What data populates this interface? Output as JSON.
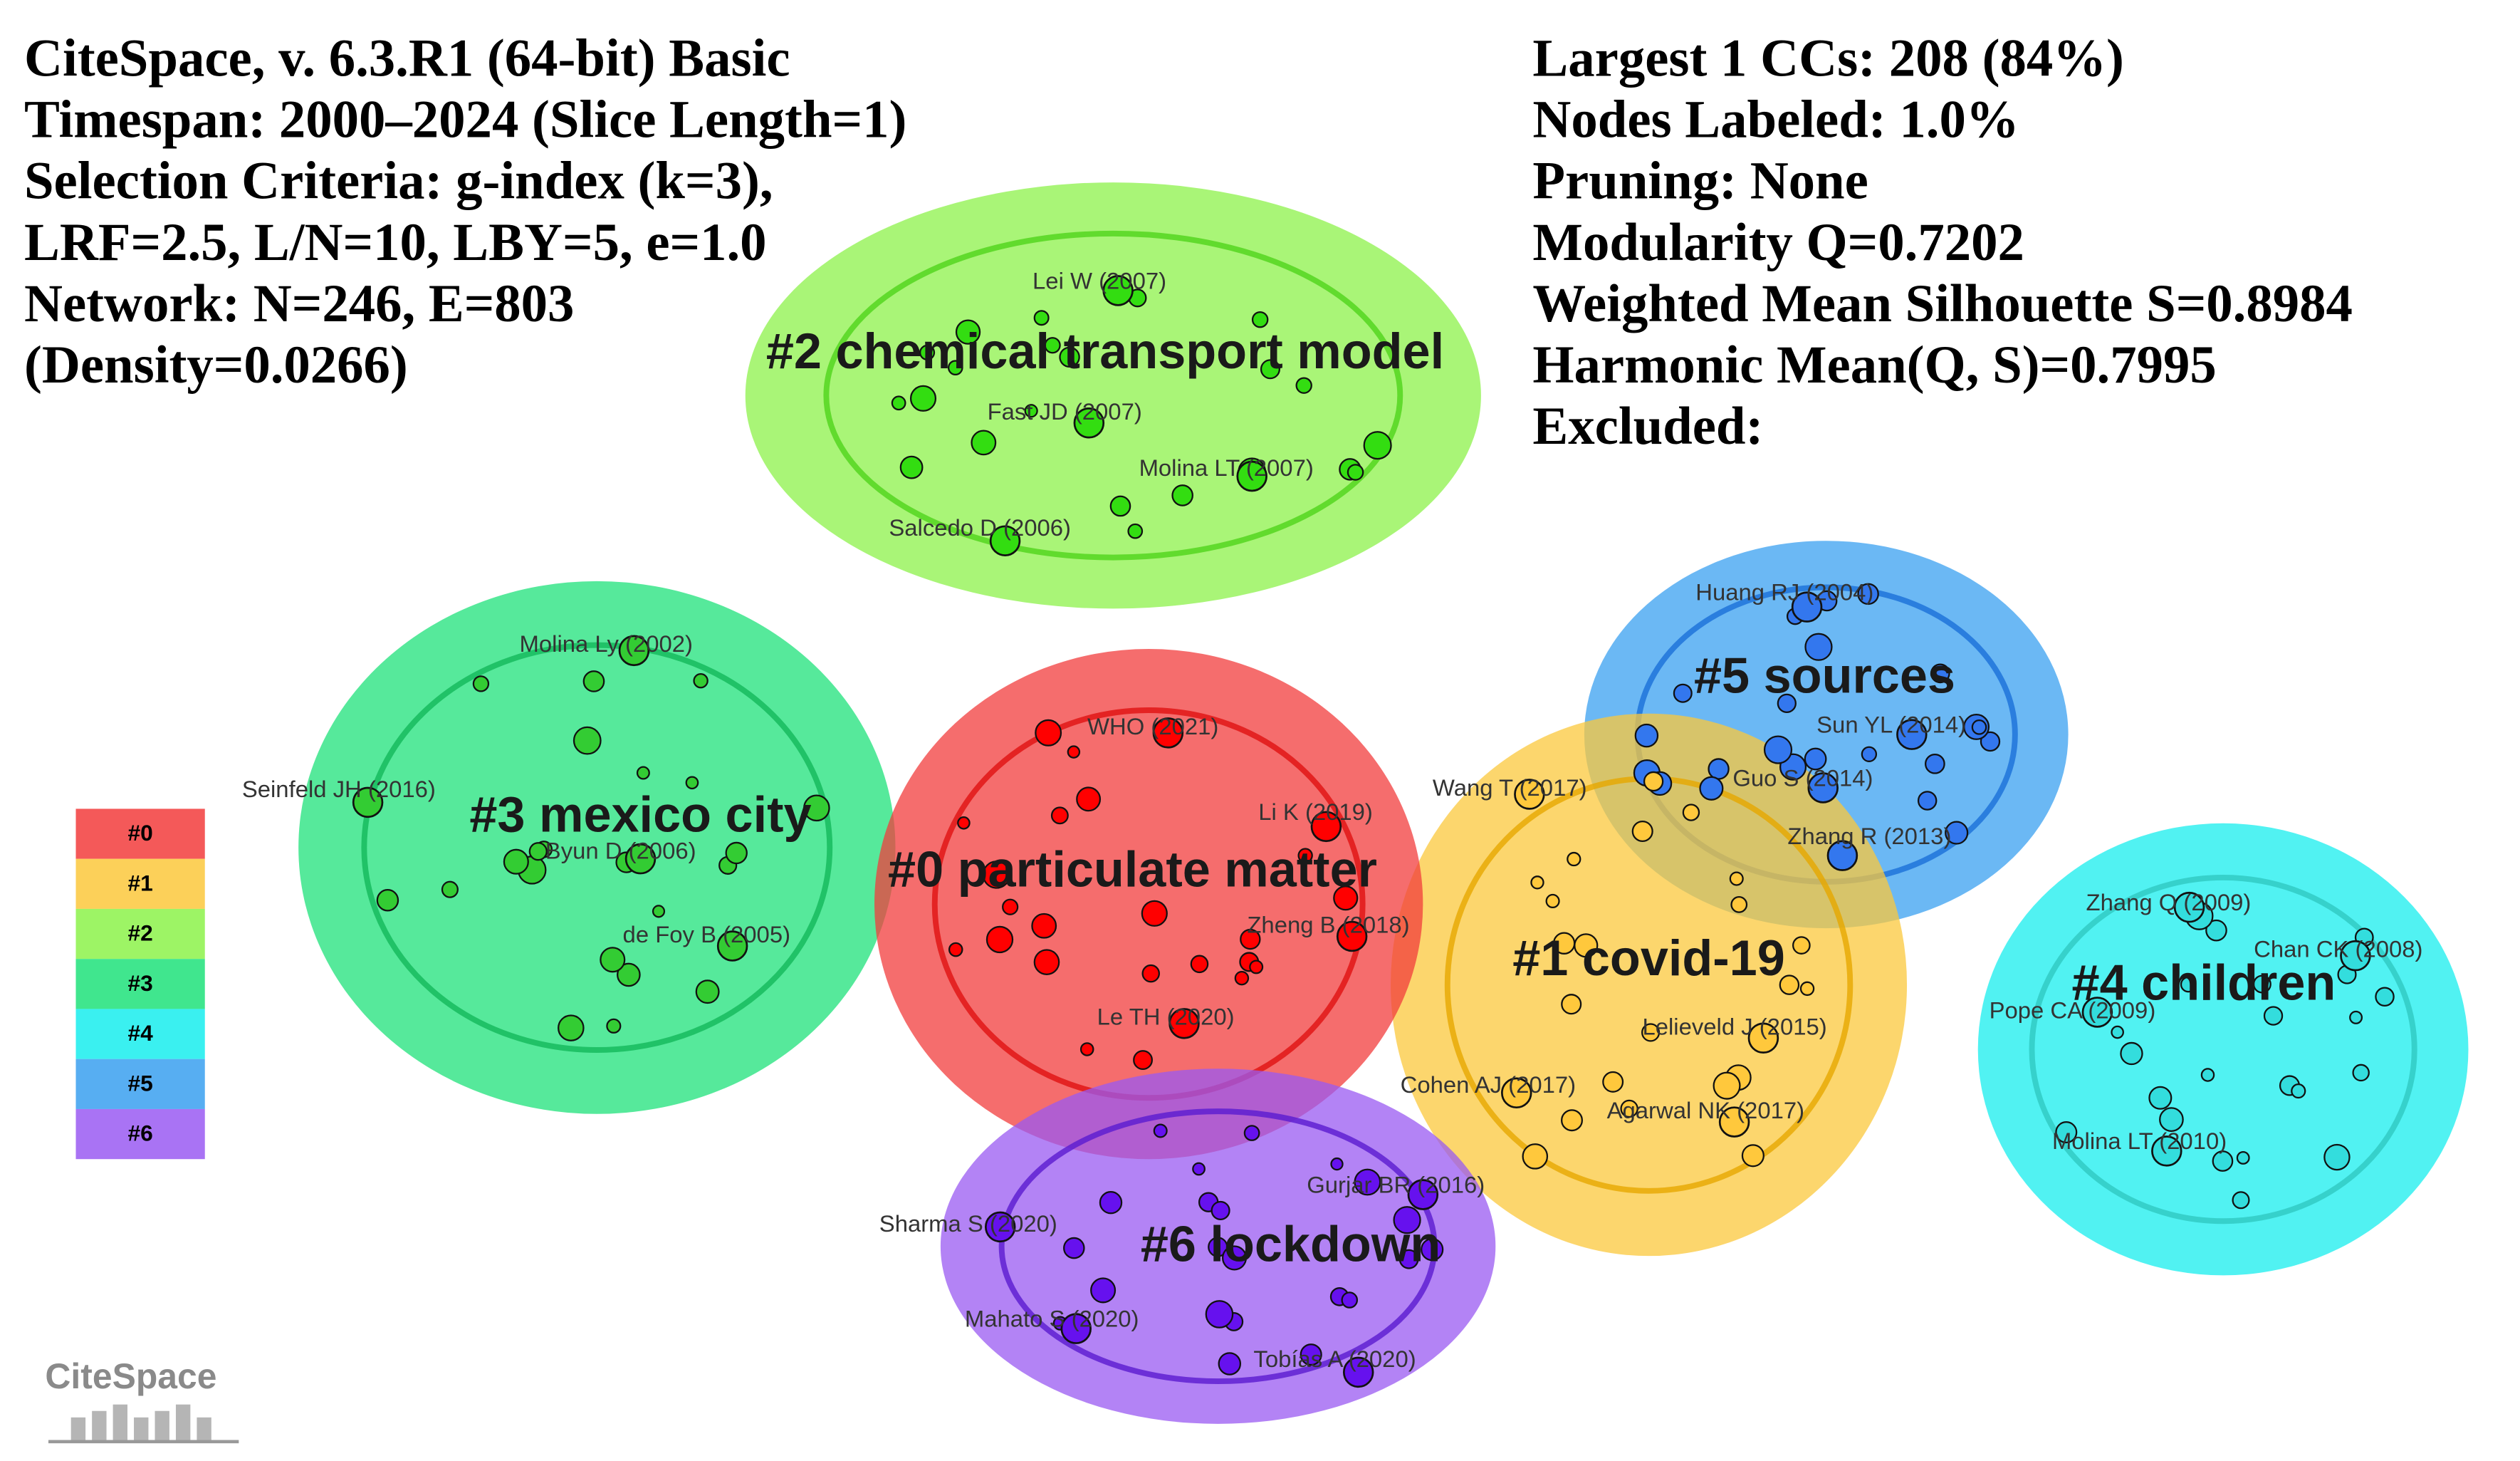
{
  "header": {
    "left": [
      "CiteSpace, v. 6.3.R1 (64-bit) Basic",
      "Timespan: 2000–2024 (Slice Length=1)",
      "Selection Criteria: g-index (k=3),",
      "LRF=2.5, L/N=10, LBY=5, e=1.0",
      "Network: N=246, E=803",
      "(Density=0.0266)"
    ],
    "right": [
      "Largest 1 CCs: 208 (84%)",
      "Nodes Labeled: 1.0%",
      "Pruning: None",
      "Modularity Q=0.7202",
      "Weighted Mean Silhouette S=0.8984",
      "Harmonic Mean(Q, S)=0.7995",
      "Excluded:"
    ]
  },
  "clusters": [
    "#0 particulate matter",
    "#1 covid-19",
    "#2 chemical transport model",
    "#3 mexico city",
    "#4 children",
    "#5 sources",
    "#6 lockdown"
  ],
  "legend": [
    "#0",
    "#1",
    "#2",
    "#3",
    "#4",
    "#5",
    "#6"
  ],
  "nodes": [
    "Lei W (2007)",
    "Fast JD (2007)",
    "Molina LT (2007)",
    "Salcedo D (2006)",
    "Molina Ly (2002)",
    "Seinfeld JH (2016)",
    "Byun D (2006)",
    "de Foy B (2005)",
    "WHO (2021)",
    "Li K (2019)",
    "Zheng B (2018)",
    "Le TH (2020)",
    "Huang RJ (2004)",
    "Sun YL (2014)",
    "Guo S (2014)",
    "Zhang R (2013)",
    "Wang T (2017)",
    "Lelieveld J (2015)",
    "Cohen AJ (2017)",
    "Agarwal NK (2017)",
    "Zhang Q (2009)",
    "Chan CK (2008)",
    "Pope CA (2009)",
    "Molina LT (2010)",
    "Gurjar BR (2016)",
    "Sharma S (2020)",
    "Mahato S (2020)",
    "Tobías A (2020)"
  ],
  "logo": "CiteSpace"
}
